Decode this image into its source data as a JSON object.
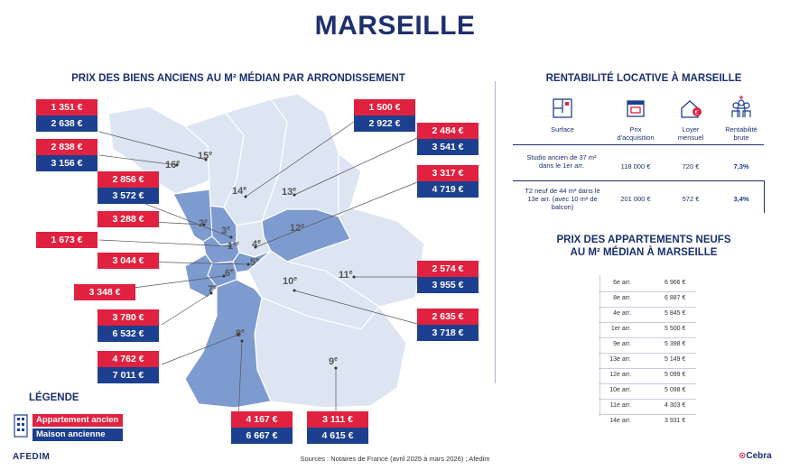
{
  "title": "MARSEILLE",
  "left_section_title": "PRIX DES BIENS ANCIENS AU M² MÉDIAN PAR ARRONDISSEMENT",
  "right_section_title": "RENTABILITÉ LOCATIVE À MARSEILLE",
  "neuf_title_line1": "PRIX DES APPARTEMENTS NEUFS",
  "neuf_title_line2": "AU M² MÉDIAN À MARSEILLE",
  "colors": {
    "appartement": "#e0213f",
    "maison": "#1c3f8f",
    "map_light": "#dde5f2",
    "map_dark": "#7e9bd0"
  },
  "chart_data": [
    {
      "type": "map",
      "series": [
        {
          "name": "Appartement ancien"
        },
        {
          "name": "Maison ancienne"
        }
      ],
      "districts": [
        {
          "label": "1er",
          "appartement": "1 673 €",
          "maison": ""
        },
        {
          "label": "2e",
          "appartement": "3 288 €",
          "maison": ""
        },
        {
          "label": "3e",
          "appartement": "2 856 €",
          "maison": "3 572 €"
        },
        {
          "label": "4e",
          "appartement": "3 317 €",
          "maison": "4 719 €"
        },
        {
          "label": "5e",
          "appartement": "3 044 €",
          "maison": ""
        },
        {
          "label": "6e",
          "appartement": "3 348 €",
          "maison": ""
        },
        {
          "label": "7e",
          "appartement": "3 780 €",
          "maison": "6 532 €"
        },
        {
          "label": "8e",
          "appartement": "4 762 €",
          "maison": "7 011 €"
        },
        {
          "label": "9e",
          "appartement": "3 111 €",
          "maison": "4 615 €"
        },
        {
          "label": "10e",
          "appartement": "2 635 €",
          "maison": "3 718 €"
        },
        {
          "label": "11e",
          "appartement": "2 574 €",
          "maison": "3 955 €"
        },
        {
          "label": "12e",
          "appartement": "4 167 €",
          "maison": "6 667 €"
        },
        {
          "label": "13e",
          "appartement": "2 484 €",
          "maison": "3 541 €"
        },
        {
          "label": "14e",
          "appartement": "1 500 €",
          "maison": "2 922 €"
        },
        {
          "label": "15e",
          "appartement": "1 351 €",
          "maison": "2 638 €"
        },
        {
          "label": "16e",
          "appartement": "2 838 €",
          "maison": "3 156 €"
        }
      ]
    },
    {
      "type": "table",
      "title": "PRIX DES APPARTEMENTS NEUFS AU M² MÉDIAN À MARSEILLE",
      "rows": [
        {
          "arr": "6e arr.",
          "value": "6 966 €"
        },
        {
          "arr": "8e arr.",
          "value": "6 887 €"
        },
        {
          "arr": "4e arr.",
          "value": "5 845 €"
        },
        {
          "arr": "1er arr.",
          "value": "5 500 €"
        },
        {
          "arr": "9e arr.",
          "value": "5 398 €"
        },
        {
          "arr": "13e arr.",
          "value": "5 149 €"
        },
        {
          "arr": "12e arr.",
          "value": "5 099 €"
        },
        {
          "arr": "10e arr.",
          "value": "5 098 €"
        },
        {
          "arr": "11e arr.",
          "value": "4 303 €"
        },
        {
          "arr": "14e arr.",
          "value": "3 931 €"
        }
      ]
    }
  ],
  "rentabilite": {
    "headers": [
      "Surface",
      "Prix d'acquisition",
      "Loyer mensuel",
      "Rentabilité brute"
    ],
    "rows": [
      {
        "surface": "Studio ancien de 37 m² dans le 1er arr.",
        "prix": "118 000 €",
        "loyer": "720 €",
        "rentabilite": "7,3%"
      },
      {
        "surface": "T2 neuf de 44 m² dans le 13e arr. (avec 10 m² de balcon)",
        "prix": "201 000 €",
        "loyer": "572 €",
        "rentabilite": "3,4%"
      }
    ]
  },
  "legend": {
    "title": "LÉGENDE",
    "appartement": "Appartement ancien",
    "maison": "Maison ancienne"
  },
  "icons": [
    "floor-plan-icon",
    "shop-icon",
    "house-euro-icon",
    "people-icon",
    "building-icon"
  ],
  "logo_left": "AFEDIM",
  "logo_right": "Cebra",
  "sources": "Sources : Notaires de France (avril 2025 à mars 2026) ; Afedim"
}
